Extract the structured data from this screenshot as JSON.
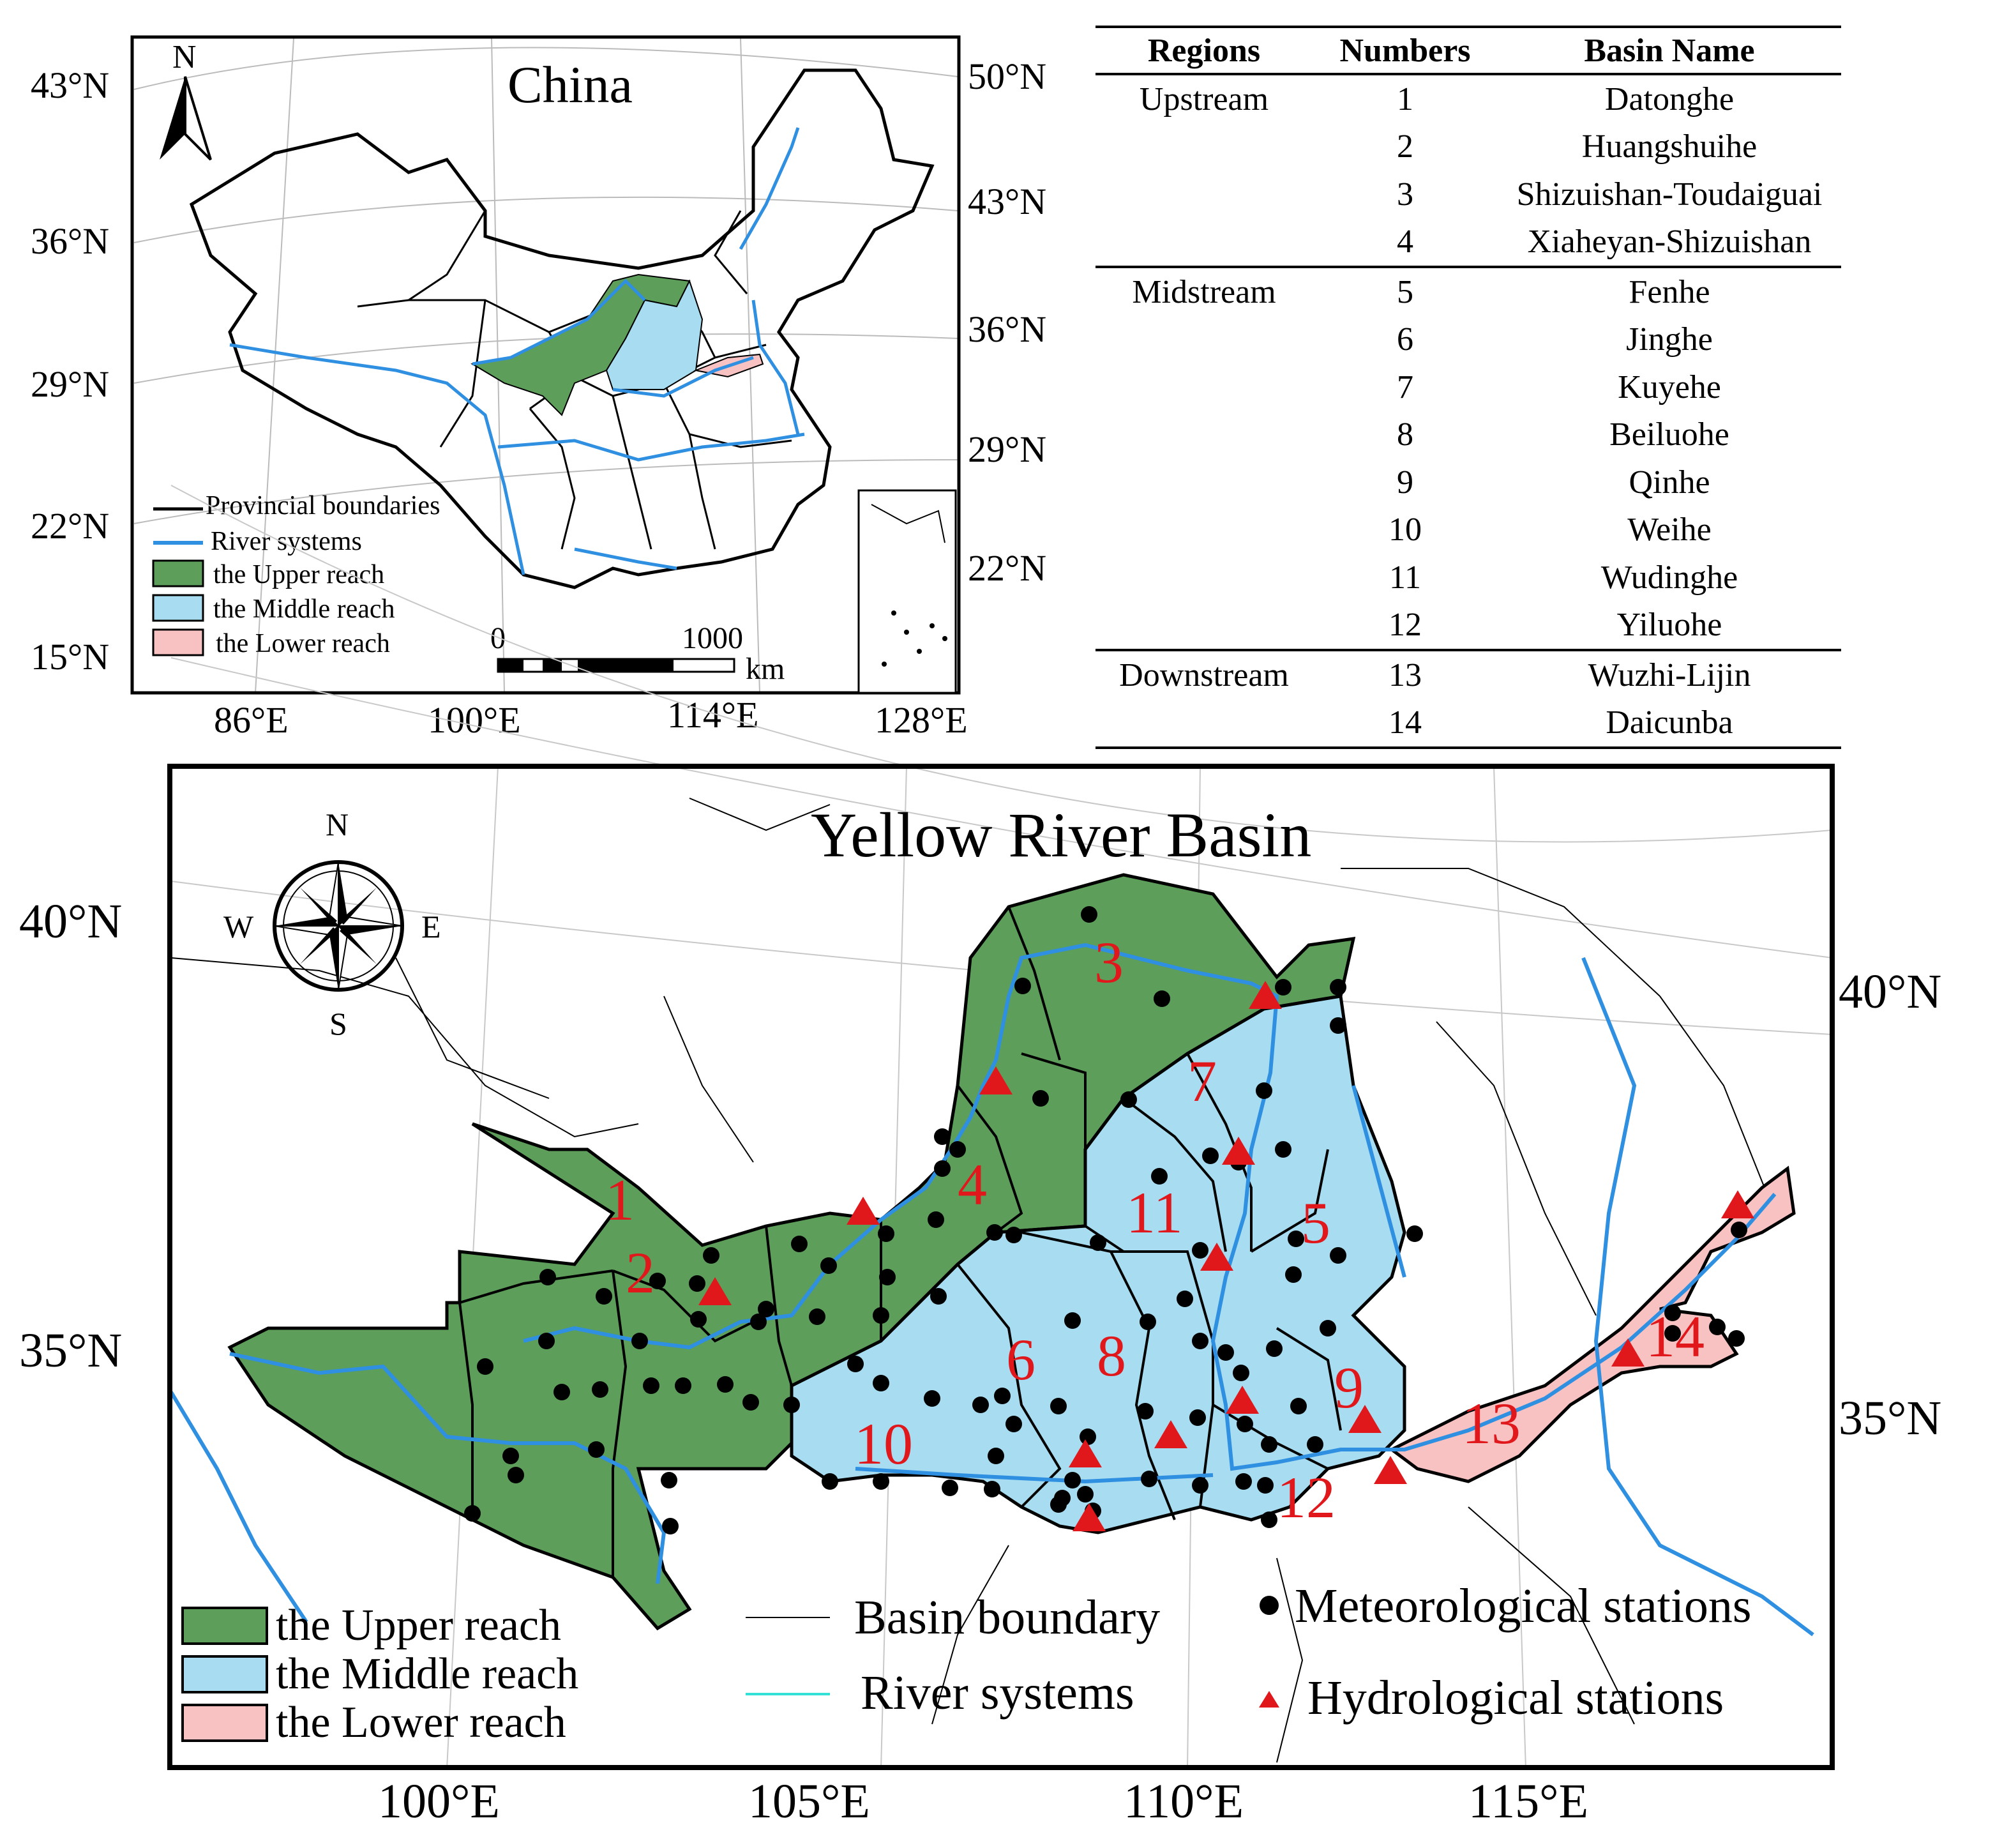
{
  "inset_map": {
    "title": "China",
    "north_label": "N",
    "lat_left": [
      "43°N",
      "36°N",
      "29°N",
      "22°N",
      "15°N"
    ],
    "lat_right": [
      "50°N",
      "43°N",
      "36°N",
      "29°N",
      "22°N"
    ],
    "lon_bottom": [
      "86°E",
      "100°E",
      "114°E",
      "128°E"
    ],
    "scale_labels": {
      "start": "0",
      "end": "1000",
      "unit": "km"
    },
    "legend": [
      {
        "label": "Provincial boundaries",
        "color": "#000000",
        "kind": "line"
      },
      {
        "label": "River systems",
        "color": "#2f8fe0",
        "kind": "line"
      },
      {
        "label": "the Upper reach",
        "color": "#5e9e5b",
        "kind": "box"
      },
      {
        "label": "the Middle reach",
        "color": "#a7dcf1",
        "kind": "box"
      },
      {
        "label": "the Lower reach",
        "color": "#f8c2c2",
        "kind": "box"
      }
    ]
  },
  "table": {
    "headers": [
      "Regions",
      "Numbers",
      "Basin Name"
    ],
    "groups": [
      {
        "region": "Upstream",
        "rows": [
          [
            "1",
            "Datonghe"
          ],
          [
            "2",
            "Huangshuihe"
          ],
          [
            "3",
            "Shizuishan-Toudaiguai"
          ],
          [
            "4",
            "Xiaheyan-Shizuishan"
          ]
        ]
      },
      {
        "region": "Midstream",
        "rows": [
          [
            "5",
            "Fenhe"
          ],
          [
            "6",
            "Jinghe"
          ],
          [
            "7",
            "Kuyehe"
          ],
          [
            "8",
            "Beiluohe"
          ],
          [
            "9",
            "Qinhe"
          ],
          [
            "10",
            "Weihe"
          ],
          [
            "11",
            "Wudinghe"
          ],
          [
            "12",
            "Yiluohe"
          ]
        ]
      },
      {
        "region": "Downstream",
        "rows": [
          [
            "13",
            "Wuzhi-Lijin"
          ],
          [
            "14",
            "Daicunba"
          ]
        ]
      }
    ]
  },
  "main_map": {
    "title": "Yellow River Basin",
    "compass": {
      "N": "N",
      "S": "S",
      "E": "E",
      "W": "W"
    },
    "lat_left": [
      "40°N",
      "35°N"
    ],
    "lat_right": [
      "40°N",
      "35°N"
    ],
    "lon_bottom": [
      "100°E",
      "105°E",
      "110°E",
      "115°E"
    ],
    "basin_numbers": [
      "1",
      "2",
      "3",
      "4",
      "5",
      "6",
      "7",
      "8",
      "9",
      "10",
      "11",
      "12",
      "13",
      "14"
    ],
    "legend": {
      "upper": "the Upper reach",
      "middle": "the Middle reach",
      "lower": "the Lower reach",
      "basin_boundary": "Basin boundary",
      "river_systems": "River systems",
      "meteorological": "Meteorological stations",
      "hydrological": "Hydrological stations"
    },
    "colors": {
      "upper": "#5e9e5b",
      "middle": "#a7dcf1",
      "lower": "#f8c2c2",
      "river": "#2f8fe0",
      "hydro": "#e0181c",
      "met": "#000000"
    }
  }
}
